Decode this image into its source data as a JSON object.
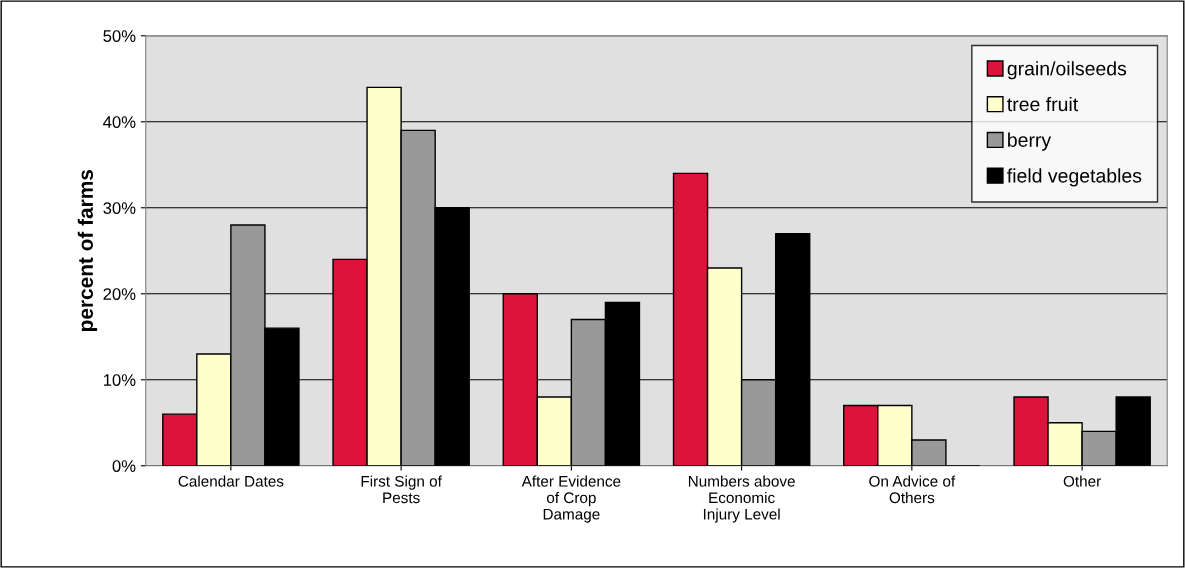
{
  "chart_data": {
    "type": "bar",
    "ylabel": "percent of farms",
    "categories": [
      "Calendar Dates",
      "First Sign of\nPests",
      "After Evidence\nof Crop\nDamage",
      "Numbers above\nEconomic\nInjury Level",
      "On Advice of\nOthers",
      "Other"
    ],
    "series": [
      {
        "name": "grain/oilseeds",
        "color": "#dc143c",
        "values": [
          6,
          24,
          20,
          34,
          7,
          8
        ]
      },
      {
        "name": "tree fruit",
        "color": "#ffffcc",
        "values": [
          13,
          44,
          8,
          23,
          7,
          5
        ]
      },
      {
        "name": "berry",
        "color": "#999999",
        "values": [
          28,
          39,
          17,
          10,
          3,
          4
        ]
      },
      {
        "name": "field vegetables",
        "color": "#000000",
        "values": [
          16,
          30,
          19,
          27,
          0,
          8
        ]
      }
    ],
    "ylim": [
      0,
      50
    ],
    "yticks": [
      {
        "value": 0,
        "label": "0%"
      },
      {
        "value": 10,
        "label": "10%"
      },
      {
        "value": 20,
        "label": "20%"
      },
      {
        "value": 30,
        "label": "30%"
      },
      {
        "value": 40,
        "label": "40%"
      },
      {
        "value": 50,
        "label": "50%"
      }
    ],
    "grid": "y",
    "legend": "top right"
  }
}
